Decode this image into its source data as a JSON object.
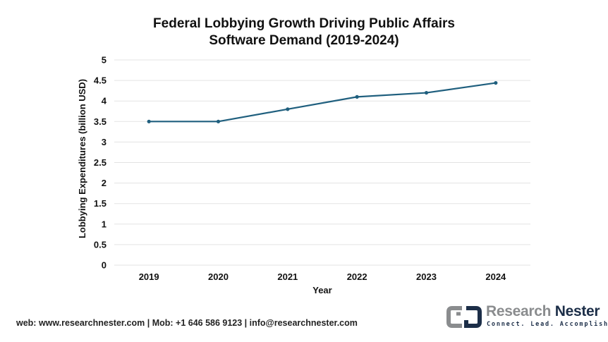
{
  "chart_data": {
    "type": "line",
    "title": [
      "Federal Lobbying Growth Driving Public Affairs",
      "Software Demand (2019-2024)"
    ],
    "xlabel": "Year",
    "ylabel": "Lobbying Expenditures (billion USD)",
    "categories": [
      "2019",
      "2020",
      "2021",
      "2022",
      "2023",
      "2024"
    ],
    "series": [
      {
        "name": "Lobbying Expenditures",
        "values": [
          3.5,
          3.5,
          3.8,
          4.1,
          4.2,
          4.44
        ],
        "color": "#1f5f7e"
      }
    ],
    "ylim": [
      0,
      5
    ],
    "yticks": [
      "0",
      "0.5",
      "1",
      "1.5",
      "2",
      "2.5",
      "3",
      "3.5",
      "4",
      "4.5",
      "5"
    ],
    "grid": true,
    "legend": "none"
  },
  "footer": {
    "contact": "web: www.researchnester.com | Mob: +1 646 586 9123 | info@researchnester.com"
  },
  "logo": {
    "name_part1": "Research",
    "name_part2": "Nester",
    "tagline": "Connect. Lead. Accomplish",
    "color_gray": "#8a8c8e",
    "color_navy": "#1c2e48"
  }
}
